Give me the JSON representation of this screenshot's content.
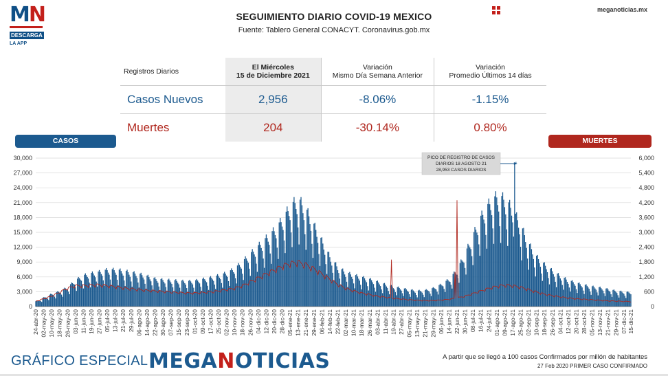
{
  "logo": {
    "mark_m": "M",
    "mark_n": "N",
    "line1": "DESCARGA",
    "line2": "LA APP"
  },
  "header": {
    "title": "SEGUIMIENTO DIARIO COVID-19 MEXICO",
    "subtitle": "Fuente: Tablero General CONACYT. Coronavirus.gob.mx",
    "site": "meganoticias.mx",
    "menu_icon": "grid-icon"
  },
  "summary": {
    "col0": "Registros Diarios",
    "col1_l1": "El Miércoles",
    "col1_l2": "15 de Diciembre 2021",
    "col2_l1": "Variación",
    "col2_l2": "Mismo Día Semana Anterior",
    "col3_l1": "Variación",
    "col3_l2": "Promedio Últimos 14 días",
    "rows": [
      {
        "label": "Casos Nuevos",
        "value": "2,956",
        "var_week": "-8.06%",
        "var_avg": "-1.15%"
      },
      {
        "label": "Muertes",
        "value": "204",
        "var_week": "-30.14%",
        "var_avg": "0.80%"
      }
    ]
  },
  "legend": {
    "casos": "CASOS",
    "muertes": "MUERTES"
  },
  "colors": {
    "casos": "#1c5a8f",
    "muertes": "#b0271e"
  },
  "chart_data": {
    "type": "bar",
    "x_start": "24-abr-20",
    "x_end": "15-dic-21",
    "x_tick_labels": [
      "24-abr-20",
      "02-may-20",
      "10-may-20",
      "18-may-20",
      "26-may-20",
      "03-jun-20",
      "11-jun-20",
      "19-jun-20",
      "27-jun-20",
      "05-jul-20",
      "13-jul-20",
      "21-jul-20",
      "29-jul-20",
      "06-ago-20",
      "14-ago-20",
      "22-ago-20",
      "30-ago-20",
      "07-sep-20",
      "15-sep-20",
      "23-sep-20",
      "01-oct-20",
      "09-oct-20",
      "17-oct-20",
      "25-oct-20",
      "02-nov-20",
      "10-nov-20",
      "18-nov-20",
      "26-nov-20",
      "04-dic-20",
      "12-dic-20",
      "20-dic-20",
      "28-dic-20",
      "05-ene-21",
      "13-ene-21",
      "21-ene-21",
      "29-ene-21",
      "06-feb-21",
      "14-feb-21",
      "22-feb-21",
      "02-mar-21",
      "10-mar-21",
      "18-mar-21",
      "26-mar-21",
      "03-abr-21",
      "11-abr-21",
      "19-abr-21",
      "27-abr-21",
      "05-may-21",
      "13-may-21",
      "21-may-21",
      "29-may-21",
      "06-jun-21",
      "14-jun-21",
      "22-jun-21",
      "30-jun-21",
      "08-jul-21",
      "16-jul-21",
      "24-jul-21",
      "01-ago-21",
      "09-ago-21",
      "17-ago-21",
      "25-ago-21",
      "02-sep-21",
      "10-sep-21",
      "18-sep-21",
      "26-sep-21",
      "04-oct-21",
      "12-oct-21",
      "20-oct-21",
      "28-oct-21",
      "05-nov-21",
      "13-nov-21",
      "21-nov-21",
      "29-nov-21",
      "07-dic-21",
      "15-dic-21"
    ],
    "y_left": {
      "label": "CASOS",
      "min": 0,
      "max": 30000,
      "step": 3000
    },
    "y_right": {
      "label": "MUERTES",
      "min": 0,
      "max": 6000,
      "step": 600
    },
    "grid": true,
    "series": [
      {
        "name": "CASOS",
        "type": "bar",
        "axis": "left",
        "points": [
          [
            0,
            1000
          ],
          [
            8,
            1700
          ],
          [
            16,
            2400
          ],
          [
            24,
            2900
          ],
          [
            32,
            3700
          ],
          [
            40,
            5000
          ],
          [
            48,
            5900
          ],
          [
            56,
            6300
          ],
          [
            64,
            6600
          ],
          [
            72,
            7000
          ],
          [
            80,
            7000
          ],
          [
            88,
            6800
          ],
          [
            96,
            6500
          ],
          [
            104,
            6200
          ],
          [
            112,
            5800
          ],
          [
            120,
            5300
          ],
          [
            128,
            5100
          ],
          [
            136,
            5000
          ],
          [
            144,
            4900
          ],
          [
            152,
            4800
          ],
          [
            160,
            4900
          ],
          [
            168,
            5200
          ],
          [
            176,
            5500
          ],
          [
            184,
            5900
          ],
          [
            192,
            6400
          ],
          [
            200,
            7200
          ],
          [
            208,
            8500
          ],
          [
            216,
            10000
          ],
          [
            224,
            11500
          ],
          [
            232,
            13000
          ],
          [
            240,
            14500
          ],
          [
            248,
            16500
          ],
          [
            256,
            19000
          ],
          [
            264,
            20500
          ],
          [
            272,
            18500
          ],
          [
            280,
            15500
          ],
          [
            288,
            12500
          ],
          [
            296,
            9500
          ],
          [
            304,
            7500
          ],
          [
            312,
            6500
          ],
          [
            320,
            6000
          ],
          [
            328,
            5600
          ],
          [
            336,
            5200
          ],
          [
            344,
            4700
          ],
          [
            352,
            4200
          ],
          [
            360,
            3800
          ],
          [
            368,
            3500
          ],
          [
            376,
            3200
          ],
          [
            384,
            3000
          ],
          [
            392,
            3100
          ],
          [
            400,
            3500
          ],
          [
            408,
            4200
          ],
          [
            416,
            5200
          ],
          [
            424,
            7000
          ],
          [
            432,
            10000
          ],
          [
            440,
            13500
          ],
          [
            448,
            17000
          ],
          [
            456,
            19500
          ],
          [
            464,
            21000
          ],
          [
            472,
            20500
          ],
          [
            480,
            18500
          ],
          [
            488,
            15500
          ],
          [
            496,
            12000
          ],
          [
            504,
            9500
          ],
          [
            512,
            8000
          ],
          [
            520,
            6800
          ],
          [
            528,
            5800
          ],
          [
            536,
            5000
          ],
          [
            544,
            4500
          ],
          [
            552,
            4100
          ],
          [
            560,
            3800
          ],
          [
            568,
            3600
          ],
          [
            576,
            3300
          ],
          [
            584,
            3000
          ],
          [
            592,
            2800
          ],
          [
            599,
            2700
          ]
        ]
      },
      {
        "name": "MUERTES",
        "type": "line",
        "axis": "right",
        "points": [
          [
            0,
            200
          ],
          [
            8,
            300
          ],
          [
            16,
            400
          ],
          [
            24,
            550
          ],
          [
            32,
            700
          ],
          [
            40,
            800
          ],
          [
            48,
            800
          ],
          [
            56,
            820
          ],
          [
            64,
            830
          ],
          [
            72,
            800
          ],
          [
            80,
            760
          ],
          [
            88,
            720
          ],
          [
            96,
            680
          ],
          [
            104,
            650
          ],
          [
            112,
            620
          ],
          [
            120,
            600
          ],
          [
            128,
            580
          ],
          [
            136,
            560
          ],
          [
            144,
            540
          ],
          [
            152,
            520
          ],
          [
            160,
            520
          ],
          [
            168,
            540
          ],
          [
            176,
            560
          ],
          [
            184,
            600
          ],
          [
            192,
            650
          ],
          [
            200,
            700
          ],
          [
            208,
            800
          ],
          [
            216,
            950
          ],
          [
            224,
            1100
          ],
          [
            232,
            1250
          ],
          [
            240,
            1400
          ],
          [
            248,
            1550
          ],
          [
            256,
            1650
          ],
          [
            264,
            1700
          ],
          [
            272,
            1600
          ],
          [
            280,
            1450
          ],
          [
            288,
            1250
          ],
          [
            296,
            1050
          ],
          [
            304,
            850
          ],
          [
            312,
            700
          ],
          [
            320,
            600
          ],
          [
            328,
            520
          ],
          [
            336,
            460
          ],
          [
            344,
            400
          ],
          [
            352,
            360
          ],
          [
            360,
            320
          ],
          [
            368,
            290
          ],
          [
            376,
            260
          ],
          [
            384,
            240
          ],
          [
            392,
            230
          ],
          [
            400,
            230
          ],
          [
            408,
            250
          ],
          [
            416,
            280
          ],
          [
            424,
            330
          ],
          [
            432,
            400
          ],
          [
            440,
            500
          ],
          [
            448,
            600
          ],
          [
            456,
            700
          ],
          [
            464,
            780
          ],
          [
            472,
            820
          ],
          [
            480,
            800
          ],
          [
            488,
            740
          ],
          [
            496,
            650
          ],
          [
            504,
            560
          ],
          [
            512,
            480
          ],
          [
            520,
            420
          ],
          [
            528,
            370
          ],
          [
            536,
            330
          ],
          [
            544,
            300
          ],
          [
            552,
            280
          ],
          [
            560,
            260
          ],
          [
            568,
            240
          ],
          [
            576,
            220
          ],
          [
            584,
            210
          ],
          [
            592,
            200
          ],
          [
            599,
            190
          ]
        ]
      }
    ],
    "annotation": {
      "line1": "PICO DE REGISTRO DE CASOS",
      "line2": "DIARIOS 18 AGOSTO 21",
      "line3": "28,953 CASOS DIARIOS",
      "peak_value": 28953
    }
  },
  "footer": {
    "left": "GRÁFICO ESPECIAL",
    "brand_a": "MEGA",
    "brand_n": "N",
    "brand_b": "OTICIAS",
    "note1": "A partir que se llegó a 100 casos Confirmados por millón de habitantes",
    "note2": "27 Feb 2020 PRIMER CASO CONFIRMADO"
  }
}
